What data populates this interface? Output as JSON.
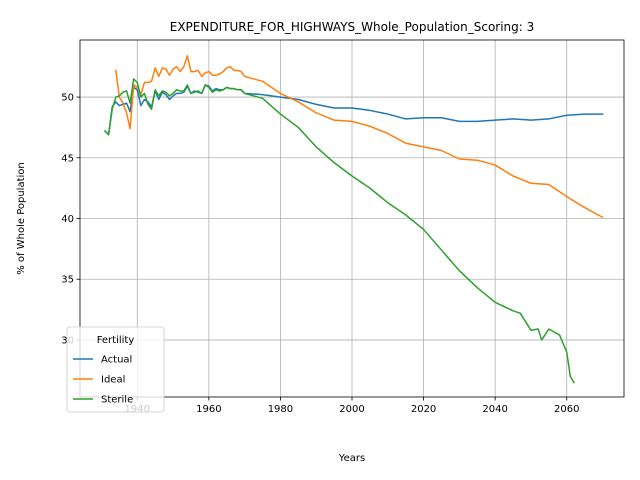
{
  "chart_data": {
    "type": "line",
    "title": "EXPENDITURE_FOR_HIGHWAYS_Whole_Population_Scoring: 3",
    "xlabel": "Years",
    "ylabel": "% of Whole Population",
    "xlim": [
      1924,
      2076
    ],
    "ylim": [
      25.3,
      54.7
    ],
    "xticks": [
      1940,
      1960,
      1980,
      2000,
      2020,
      2040,
      2060
    ],
    "yticks": [
      30,
      35,
      40,
      45,
      50
    ],
    "grid": true,
    "legend": {
      "title": "Fertility",
      "placement": "lower-left"
    },
    "series": [
      {
        "name": "Actual",
        "color": "#1f77b4",
        "x": [
          1931,
          1932,
          1933,
          1934,
          1935,
          1936,
          1937,
          1938,
          1939,
          1940,
          1941,
          1942,
          1943,
          1944,
          1945,
          1946,
          1947,
          1948,
          1949,
          1950,
          1951,
          1952,
          1953,
          1954,
          1955,
          1956,
          1957,
          1958,
          1959,
          1960,
          1961,
          1962,
          1963,
          1964,
          1965,
          1966,
          1967,
          1968,
          1969,
          1970,
          1975,
          1980,
          1985,
          1990,
          1995,
          2000,
          2005,
          2010,
          2015,
          2020,
          2025,
          2030,
          2035,
          2040,
          2045,
          2050,
          2055,
          2060,
          2065,
          2070
        ],
        "values": [
          47.2,
          46.9,
          49.2,
          49.6,
          49.3,
          49.4,
          49.5,
          48.8,
          50.8,
          50.6,
          49.3,
          49.8,
          49.6,
          49.2,
          50.5,
          49.8,
          50.4,
          50.2,
          49.8,
          50.1,
          50.3,
          50.3,
          50.4,
          50.9,
          50.3,
          50.5,
          50.4,
          50.3,
          51.0,
          50.9,
          50.5,
          50.7,
          50.6,
          50.6,
          50.8,
          50.7,
          50.7,
          50.6,
          50.6,
          50.3,
          50.2,
          50.0,
          49.8,
          49.4,
          49.1,
          49.1,
          48.9,
          48.6,
          48.2,
          48.3,
          48.3,
          48.0,
          48.0,
          48.1,
          48.2,
          48.1,
          48.2,
          48.5,
          48.6,
          48.6
        ]
      },
      {
        "name": "Ideal",
        "color": "#ff7f0e",
        "x": [
          1934,
          1935,
          1936,
          1937,
          1938,
          1939,
          1940,
          1941,
          1942,
          1943,
          1944,
          1945,
          1946,
          1947,
          1948,
          1949,
          1950,
          1951,
          1952,
          1953,
          1954,
          1955,
          1956,
          1957,
          1958,
          1959,
          1960,
          1961,
          1962,
          1963,
          1964,
          1965,
          1966,
          1967,
          1968,
          1969,
          1970,
          1975,
          1980,
          1985,
          1990,
          1995,
          2000,
          2005,
          2010,
          2015,
          2020,
          2025,
          2030,
          2035,
          2040,
          2045,
          2050,
          2055,
          2060,
          2065,
          2070
        ],
        "values": [
          52.2,
          50.0,
          49.5,
          48.7,
          47.4,
          51.0,
          50.8,
          50.2,
          51.2,
          51.2,
          51.3,
          52.4,
          51.7,
          52.4,
          52.3,
          51.8,
          52.3,
          52.5,
          52.1,
          52.5,
          53.4,
          52.1,
          52.1,
          52.2,
          51.7,
          52.0,
          52.1,
          51.8,
          51.8,
          51.9,
          52.1,
          52.4,
          52.5,
          52.2,
          52.2,
          52.1,
          51.7,
          51.3,
          50.3,
          49.6,
          48.7,
          48.1,
          48.0,
          47.6,
          47.0,
          46.2,
          45.9,
          45.6,
          44.9,
          44.8,
          44.4,
          43.5,
          42.9,
          42.8,
          41.8,
          40.9,
          40.1
        ]
      },
      {
        "name": "Sterile",
        "color": "#2ca02c",
        "x": [
          1931,
          1932,
          1933,
          1934,
          1935,
          1936,
          1937,
          1938,
          1939,
          1940,
          1941,
          1942,
          1943,
          1944,
          1945,
          1946,
          1947,
          1948,
          1949,
          1950,
          1951,
          1952,
          1953,
          1954,
          1955,
          1956,
          1957,
          1958,
          1959,
          1960,
          1961,
          1962,
          1963,
          1964,
          1965,
          1966,
          1967,
          1968,
          1969,
          1970,
          1975,
          1980,
          1985,
          1990,
          1995,
          2000,
          2005,
          2010,
          2015,
          2020,
          2025,
          2030,
          2035,
          2040,
          2045,
          2047,
          2050,
          2052,
          2053,
          2055,
          2058,
          2060,
          2061,
          2062
        ],
        "values": [
          47.2,
          46.9,
          49.0,
          50.0,
          50.1,
          50.4,
          50.5,
          49.5,
          51.5,
          51.2,
          50.0,
          50.3,
          49.4,
          49.0,
          50.6,
          50.1,
          50.5,
          50.4,
          50.1,
          50.3,
          50.6,
          50.5,
          50.5,
          51.0,
          50.3,
          50.4,
          50.5,
          50.3,
          51.0,
          50.8,
          50.4,
          50.6,
          50.5,
          50.6,
          50.8,
          50.7,
          50.7,
          50.6,
          50.6,
          50.3,
          49.9,
          48.6,
          47.5,
          45.9,
          44.6,
          43.5,
          42.5,
          41.3,
          40.3,
          39.1,
          37.4,
          35.7,
          34.3,
          33.1,
          32.4,
          32.2,
          30.8,
          30.9,
          30.0,
          30.9,
          30.4,
          29.0,
          27.0,
          26.5
        ]
      }
    ]
  }
}
